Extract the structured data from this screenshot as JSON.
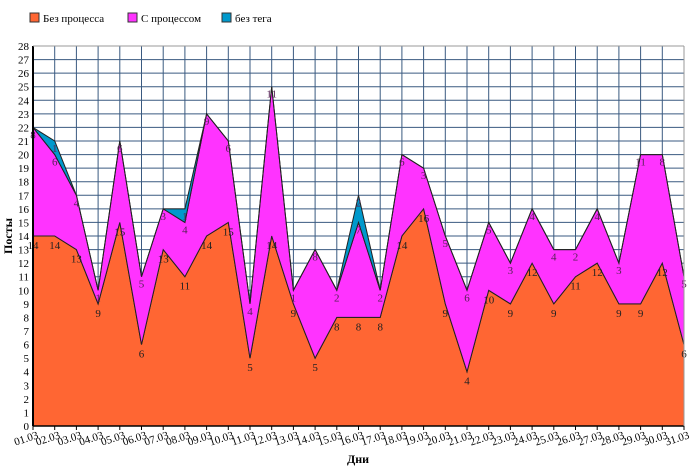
{
  "chart_data": {
    "type": "area",
    "stacked": true,
    "title": "",
    "xlabel": "Дни",
    "ylabel": "Посты",
    "ylim": [
      0,
      28
    ],
    "grid": true,
    "legend_position": "top-left",
    "categories": [
      "01.03",
      "02.03",
      "03.03",
      "04.03",
      "05.03",
      "06.03",
      "07.03",
      "08.03",
      "09.03",
      "10.03",
      "11.03",
      "12.03",
      "13.03",
      "14.03",
      "15.03",
      "16.03",
      "17.03",
      "18.03",
      "19.03",
      "20.03",
      "21.03",
      "22.03",
      "23.03",
      "24.03",
      "25.03",
      "26.03",
      "27.03",
      "28.03",
      "29.03",
      "30.03",
      "31.03"
    ],
    "series": [
      {
        "name": "Без процесса",
        "color": "#ff6633",
        "values": [
          14,
          14,
          13,
          9,
          15,
          6,
          13,
          11,
          14,
          15,
          5,
          14,
          9,
          5,
          8,
          8,
          8,
          14,
          16,
          9,
          4,
          10,
          9,
          12,
          9,
          11,
          12,
          9,
          9,
          12,
          6
        ]
      },
      {
        "name": "С процессом",
        "color": "#ff33ff",
        "values": [
          8,
          6,
          4,
          1,
          6,
          5,
          3,
          4,
          9,
          6,
          4,
          11,
          1,
          8,
          2,
          7,
          2,
          6,
          3,
          5,
          6,
          5,
          3,
          4,
          4,
          2,
          4,
          3,
          11,
          8,
          5
        ]
      },
      {
        "name": "без тега",
        "color": "#0099cc",
        "values": [
          0,
          1,
          0,
          0,
          0,
          0,
          0,
          1,
          0,
          0,
          0,
          0,
          0,
          0,
          0,
          2,
          0,
          0,
          0,
          0,
          0,
          0,
          0,
          0,
          0,
          0,
          0,
          0,
          0,
          0,
          0
        ]
      }
    ]
  }
}
